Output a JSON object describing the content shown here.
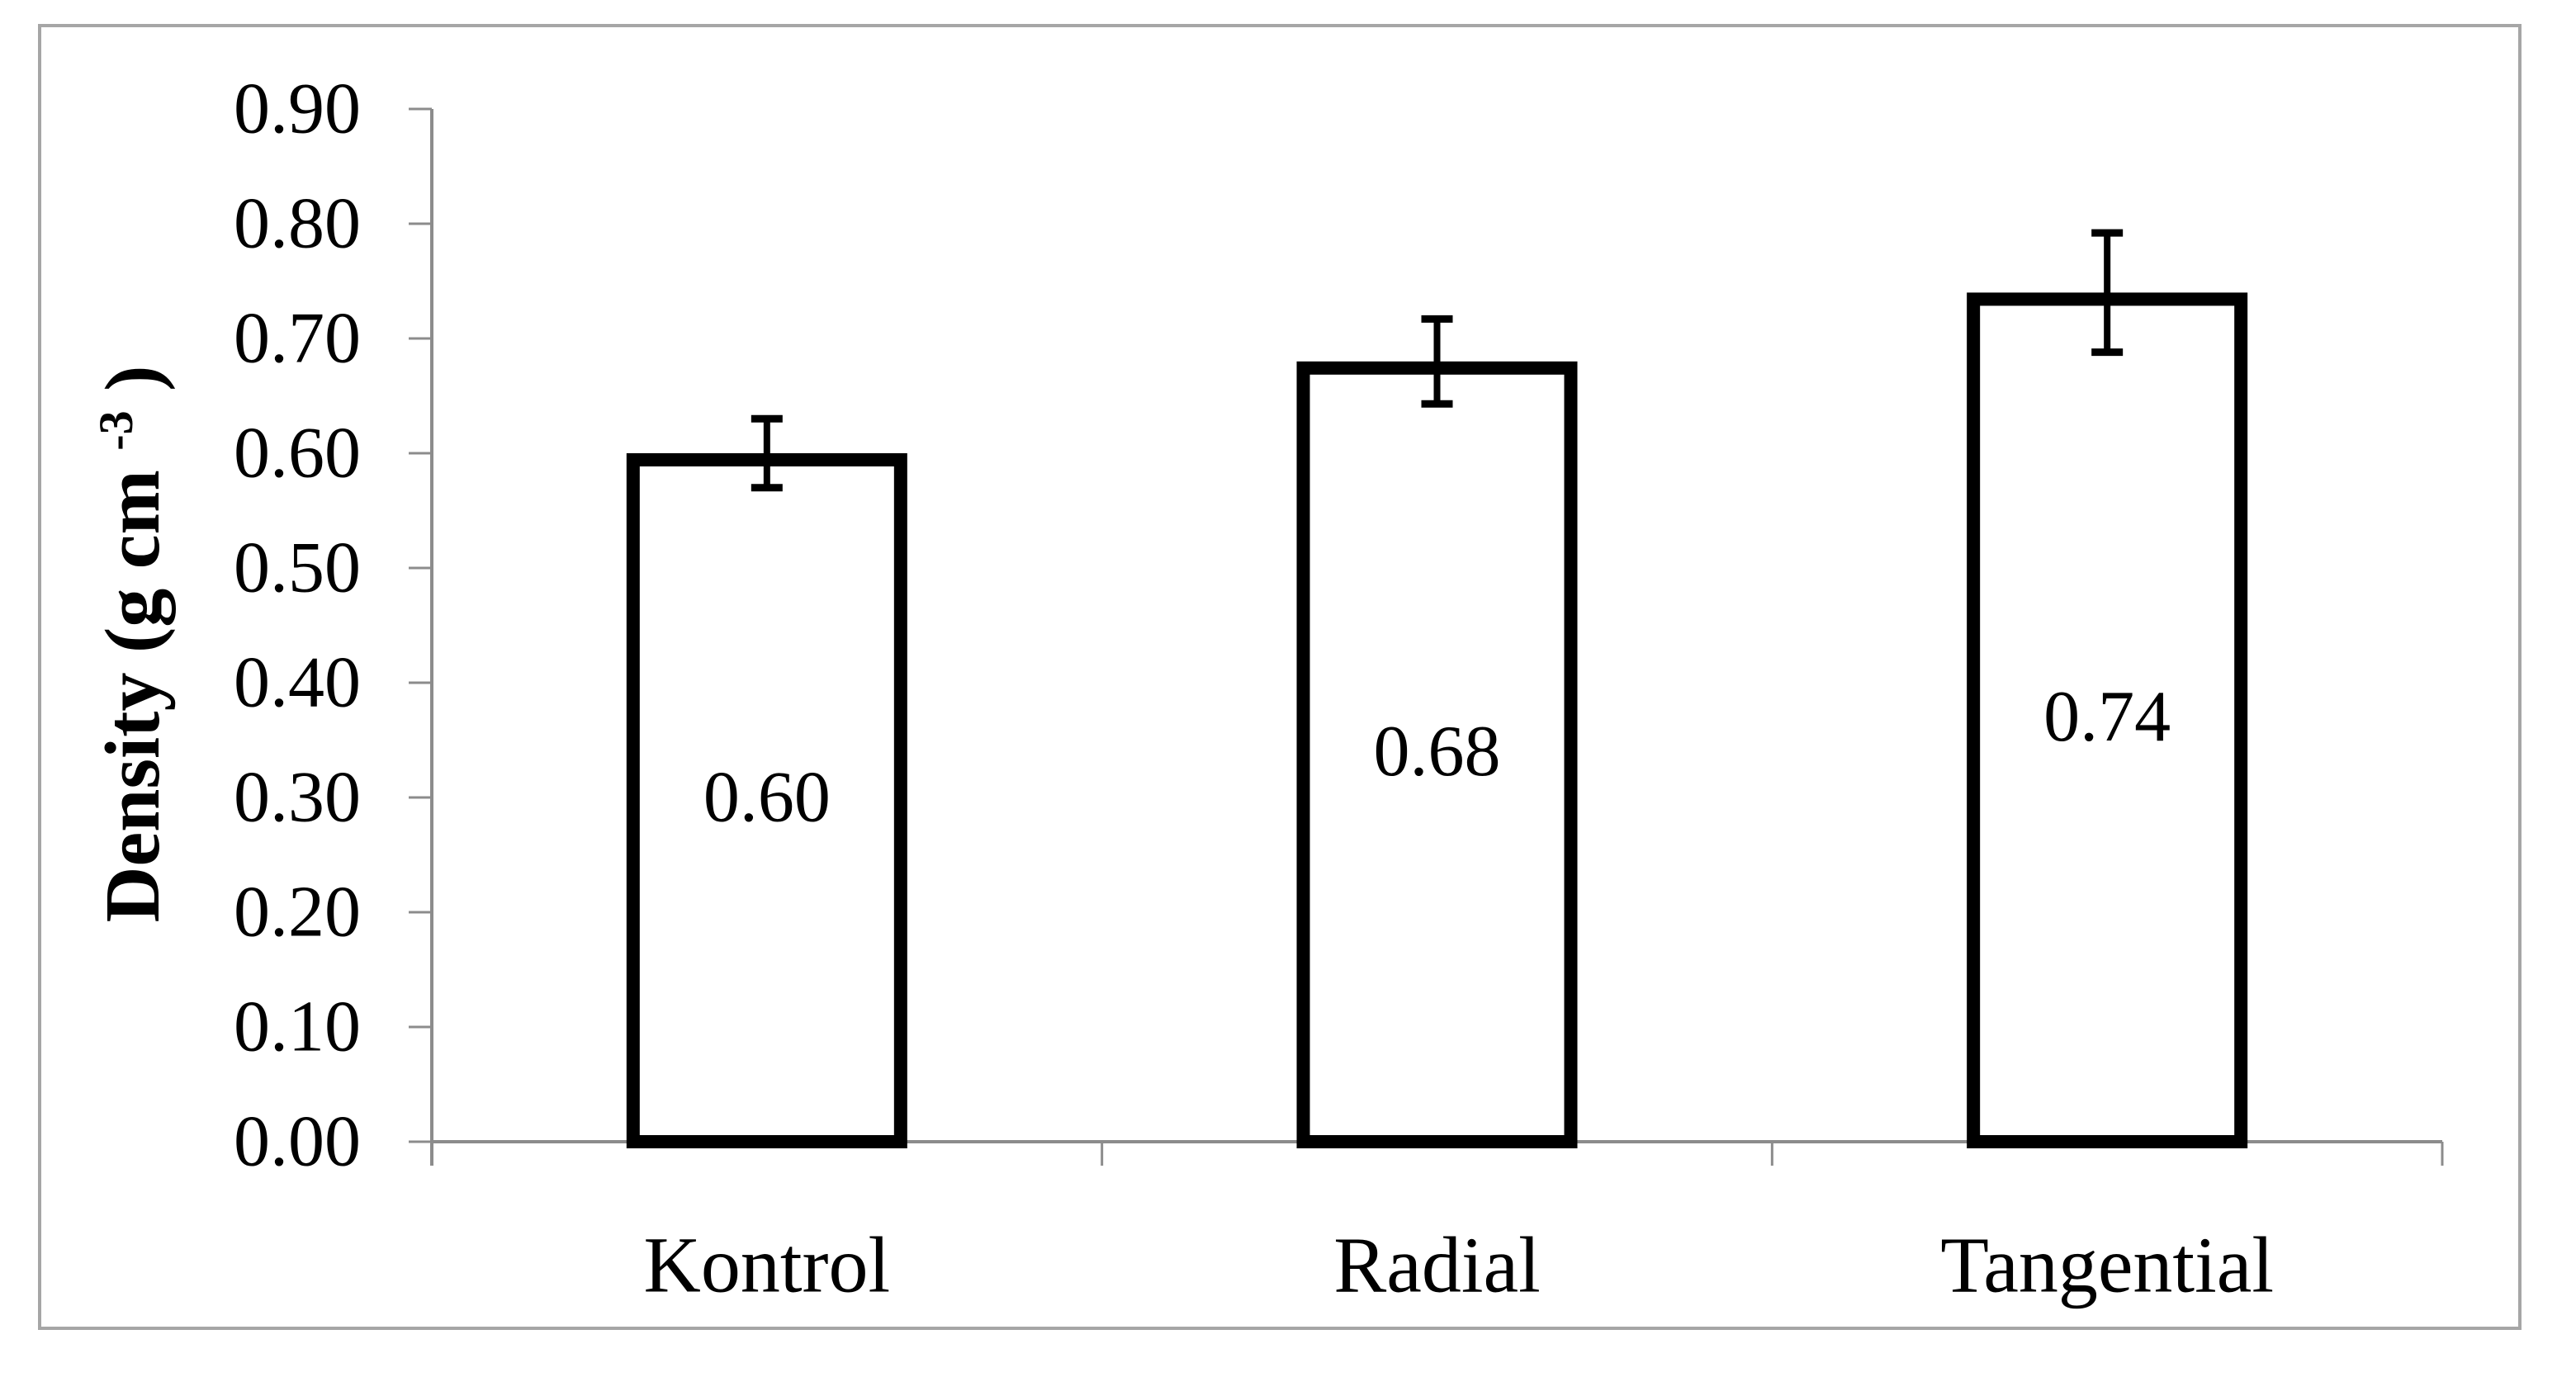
{
  "chart_data": {
    "type": "bar",
    "title": "",
    "categories": [
      "Kontrol",
      "Radial",
      "Tangential"
    ],
    "values": [
      0.6,
      0.68,
      0.74
    ],
    "value_labels": [
      "0.60",
      "0.68",
      "0.74"
    ],
    "errors": [
      0.03,
      0.037,
      0.052
    ],
    "series": [
      {
        "name": "Density",
        "values": [
          0.6,
          0.68,
          0.74
        ]
      }
    ],
    "xlabel": "",
    "ylabel_main": "Density (g cm",
    "ylabel_superscript": "-3",
    "ylabel_close": ")",
    "ylim": [
      0.0,
      0.9
    ],
    "ytick_step": 0.1,
    "ytick_labels": [
      "0.00",
      "0.10",
      "0.20",
      "0.30",
      "0.40",
      "0.50",
      "0.60",
      "0.70",
      "0.80",
      "0.90"
    ],
    "grid": false,
    "legend": "none",
    "error_bars": true,
    "value_label_position": "inside-center",
    "colors": {
      "bar_fill": "#ffffff",
      "bar_stroke": "#000000",
      "error_bar": "#000000",
      "axis": "#8c8c8c",
      "frame_border": "#a6a6a6",
      "text": "#000000"
    }
  }
}
